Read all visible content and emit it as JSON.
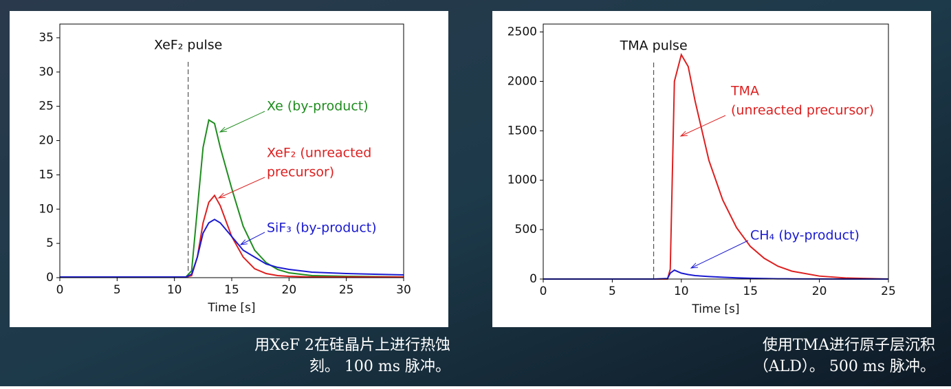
{
  "chart_data": [
    {
      "type": "line",
      "x_label": "Time [s]",
      "x": [
        0,
        5,
        10,
        11,
        11.5,
        12,
        12.5,
        13,
        13.5,
        14,
        15,
        16,
        17,
        18,
        19,
        20,
        22,
        25,
        30
      ],
      "series": [
        {
          "name": "Xe",
          "color": "#1e8c1e",
          "values": [
            0.1,
            0.1,
            0.1,
            0.1,
            1,
            10,
            19,
            23,
            22.5,
            19,
            13,
            7.5,
            4,
            2.2,
            1.2,
            0.7,
            0.3,
            0.2,
            0.1
          ]
        },
        {
          "name": "XeF₂",
          "color": "#dd1f1f",
          "values": [
            0.1,
            0.1,
            0.1,
            0.1,
            0.3,
            3,
            8,
            11,
            12,
            10.5,
            6,
            3,
            1.3,
            0.6,
            0.3,
            0.2,
            0.1,
            0.1,
            0.1
          ]
        },
        {
          "name": "SiF₃",
          "color": "#1a1ad0",
          "values": [
            0.1,
            0.1,
            0.1,
            0.1,
            0.5,
            3,
            6.5,
            8,
            8.5,
            8,
            6,
            4,
            3,
            2,
            1.5,
            1.2,
            0.8,
            0.6,
            0.4
          ]
        }
      ],
      "xlim": [
        0,
        30
      ],
      "xticks": [
        0,
        5,
        10,
        15,
        20,
        25,
        30
      ],
      "ylim": [
        0,
        37
      ],
      "yticks": [
        0,
        5,
        10,
        15,
        20,
        25,
        30,
        35
      ],
      "vline": {
        "x": 11.2,
        "label": "XeF₂ pulse"
      },
      "annotations": [
        {
          "lines": [
            "Xe (by-product)"
          ],
          "color": "#1e8c1e"
        },
        {
          "lines": [
            "XeF₂ (unreacted",
            "precursor)"
          ],
          "color": "#dd1f1f"
        },
        {
          "lines": [
            "SiF₃ (by-product)"
          ],
          "color": "#1a1ad0"
        }
      ]
    },
    {
      "type": "line",
      "x_label": "Time [s]",
      "x": [
        0,
        5,
        8,
        9,
        9.2,
        9.5,
        10,
        10.5,
        11,
        12,
        13,
        14,
        15,
        16,
        17,
        18,
        20,
        22,
        25
      ],
      "series": [
        {
          "name": "TMA",
          "color": "#dd1f1f",
          "values": [
            0,
            0,
            0,
            0,
            100,
            2000,
            2270,
            2150,
            1800,
            1200,
            800,
            520,
            330,
            210,
            130,
            80,
            30,
            10,
            0
          ]
        },
        {
          "name": "CH₄",
          "color": "#1a1ad0",
          "values": [
            0,
            0,
            0,
            5,
            60,
            90,
            60,
            45,
            35,
            25,
            18,
            12,
            8,
            5,
            3,
            2,
            1,
            0,
            0
          ]
        }
      ],
      "xlim": [
        0,
        25
      ],
      "xticks": [
        0,
        5,
        10,
        15,
        20,
        25
      ],
      "ylim": [
        0,
        2580
      ],
      "yticks": [
        0,
        500,
        1000,
        1500,
        2000,
        2500
      ],
      "vline": {
        "x": 8,
        "label": "TMA pulse"
      },
      "annotations": [
        {
          "lines": [
            "TMA",
            "(unreacted precursor)"
          ],
          "color": "#dd1f1f"
        },
        {
          "lines": [
            "CH₄ (by-product)"
          ],
          "color": "#1a1ad0"
        }
      ]
    }
  ],
  "captions": [
    {
      "lines": [
        "用XeF 2在硅晶片上进行热蚀",
        "刻。 100 ms  脉冲。"
      ]
    },
    {
      "lines": [
        "使用TMA进行原子层沉积",
        "（ALD）。 500 ms 脉冲。"
      ]
    }
  ]
}
